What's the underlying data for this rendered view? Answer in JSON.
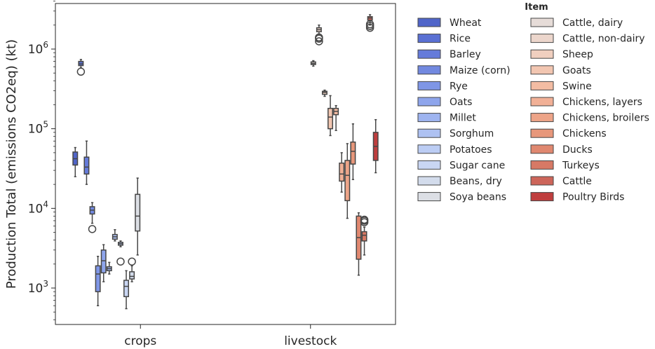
{
  "chart_data": {
    "type": "boxplot",
    "title": "",
    "xlabel": "",
    "ylabel": "Production Total (emissions CO2eq) (kt)",
    "yscale": "log",
    "ylim": [
      350,
      4200000
    ],
    "yticks": [
      {
        "value": 1000,
        "base": "10",
        "exp": "3"
      },
      {
        "value": 10000,
        "base": "10",
        "exp": "4"
      },
      {
        "value": 100000,
        "base": "10",
        "exp": "5"
      },
      {
        "value": 1000000,
        "base": "10",
        "exp": "6"
      }
    ],
    "categories": [
      "crops",
      "livestock"
    ],
    "legend": {
      "title": "Item",
      "position": "outside-right"
    },
    "series": [
      {
        "name": "Wheat",
        "color": "#5065c9",
        "category": "crops",
        "box": {
          "whislo": 25000,
          "q1": 35000,
          "med": 42000,
          "q3": 51000,
          "whishi": 58000
        },
        "fliers": []
      },
      {
        "name": "Rice",
        "color": "#5a70d3",
        "category": "crops",
        "box": {
          "whislo": 580000,
          "q1": 620000,
          "med": 650000,
          "q3": 700000,
          "whishi": 740000
        },
        "fliers": [
          520000
        ]
      },
      {
        "name": "Barley",
        "color": "#657bda",
        "category": "crops",
        "box": {
          "whislo": 20000,
          "q1": 27000,
          "med": 33000,
          "q3": 44000,
          "whishi": 70000
        },
        "fliers": []
      },
      {
        "name": "Maize (corn)",
        "color": "#7289e0",
        "category": "crops",
        "box": {
          "whislo": 6500,
          "q1": 8500,
          "med": 9500,
          "q3": 10500,
          "whishi": 11800
        },
        "fliers": [
          5500
        ]
      },
      {
        "name": "Rye",
        "color": "#7f96e6",
        "category": "crops",
        "box": {
          "whislo": 600,
          "q1": 900,
          "med": 1500,
          "q3": 1900,
          "whishi": 2500
        },
        "fliers": []
      },
      {
        "name": "Oats",
        "color": "#8ea5ec",
        "category": "crops",
        "box": {
          "whislo": 1200,
          "q1": 1550,
          "med": 2200,
          "q3": 3000,
          "whishi": 3500
        },
        "fliers": []
      },
      {
        "name": "Millet",
        "color": "#9eb4f0",
        "category": "crops",
        "box": {
          "whislo": 1500,
          "q1": 1650,
          "med": 1750,
          "q3": 1850,
          "whishi": 2100
        },
        "fliers": []
      },
      {
        "name": "Sorghum",
        "color": "#aec1f2",
        "category": "crops",
        "box": {
          "whislo": 3900,
          "q1": 4100,
          "med": 4400,
          "q3": 4700,
          "whishi": 5400
        },
        "fliers": []
      },
      {
        "name": "Potatoes",
        "color": "#bccdf4",
        "category": "crops",
        "box": {
          "whislo": 3300,
          "q1": 3450,
          "med": 3600,
          "q3": 3750,
          "whishi": 3900
        },
        "fliers": [
          2150
        ]
      },
      {
        "name": "Sugar cane",
        "color": "#c9d6f3",
        "category": "crops",
        "box": {
          "whislo": 550,
          "q1": 780,
          "med": 1050,
          "q3": 1250,
          "whishi": 1650
        },
        "fliers": []
      },
      {
        "name": "Beans, dry",
        "color": "#d3dcec",
        "category": "crops",
        "box": {
          "whislo": 1200,
          "q1": 1300,
          "med": 1400,
          "q3": 1600,
          "whishi": 1900
        },
        "fliers": [
          2150
        ]
      },
      {
        "name": "Soya beans",
        "color": "#dcdfe5",
        "category": "crops",
        "box": {
          "whislo": 2600,
          "q1": 5200,
          "med": 8000,
          "q3": 15000,
          "whishi": 24000
        },
        "fliers": []
      },
      {
        "name": "Cattle, dairy",
        "color": "#e6dcd8",
        "category": "livestock",
        "box": {
          "whislo": 610000,
          "q1": 640000,
          "med": 660000,
          "q3": 690000,
          "whishi": 715000
        },
        "fliers": []
      },
      {
        "name": "Cattle, non-dairy",
        "color": "#ecd6cc",
        "category": "livestock",
        "box": {
          "whislo": 1500000,
          "q1": 1650000,
          "med": 1750000,
          "q3": 1850000,
          "whishi": 2000000
        },
        "fliers": [
          1250000,
          1350000,
          1400000
        ]
      },
      {
        "name": "Sheep",
        "color": "#f0cfbf",
        "category": "livestock",
        "box": {
          "whislo": 255000,
          "q1": 270000,
          "med": 285000,
          "q3": 295000,
          "whishi": 305000
        },
        "fliers": []
      },
      {
        "name": "Goats",
        "color": "#f2c6b1",
        "category": "livestock",
        "box": {
          "whislo": 82000,
          "q1": 100000,
          "med": 140000,
          "q3": 180000,
          "whishi": 260000
        },
        "fliers": []
      },
      {
        "name": "Swine",
        "color": "#f3bca3",
        "category": "livestock",
        "box": {
          "whislo": 95000,
          "q1": 150000,
          "med": 165000,
          "q3": 180000,
          "whishi": 195000
        },
        "fliers": []
      },
      {
        "name": "Chickens, layers",
        "color": "#f1b096",
        "category": "livestock",
        "box": {
          "whislo": 16000,
          "q1": 22000,
          "med": 27000,
          "q3": 37000,
          "whishi": 50000
        },
        "fliers": []
      },
      {
        "name": "Chickens, broilers",
        "color": "#eda488",
        "category": "livestock",
        "box": {
          "whislo": 7500,
          "q1": 12500,
          "med": 26000,
          "q3": 40000,
          "whishi": 65000
        },
        "fliers": []
      },
      {
        "name": "Chickens",
        "color": "#e7977b",
        "category": "livestock",
        "box": {
          "whislo": 23000,
          "q1": 36000,
          "med": 52000,
          "q3": 68000,
          "whishi": 115000
        },
        "fliers": []
      },
      {
        "name": "Ducks",
        "color": "#e08870",
        "category": "livestock",
        "box": {
          "whislo": 1450,
          "q1": 2300,
          "med": 4300,
          "q3": 8000,
          "whishi": 8800
        },
        "fliers": []
      },
      {
        "name": "Turkeys",
        "color": "#d77965",
        "category": "livestock",
        "box": {
          "whislo": 2600,
          "q1": 3900,
          "med": 4600,
          "q3": 5100,
          "whishi": 5800
        },
        "fliers": [
          6700,
          7000,
          7200
        ]
      },
      {
        "name": "Cattle",
        "color": "#cd655a",
        "category": "livestock",
        "box": {
          "whislo": 2000000,
          "q1": 2300000,
          "med": 2450000,
          "q3": 2550000,
          "whishi": 2700000
        },
        "fliers": [
          1850000,
          1950000,
          2050000
        ]
      },
      {
        "name": "Poultry Birds",
        "color": "#bf3e3e",
        "category": "livestock",
        "box": {
          "whislo": 28000,
          "q1": 40000,
          "med": 60000,
          "q3": 90000,
          "whishi": 130000
        },
        "fliers": []
      }
    ]
  }
}
